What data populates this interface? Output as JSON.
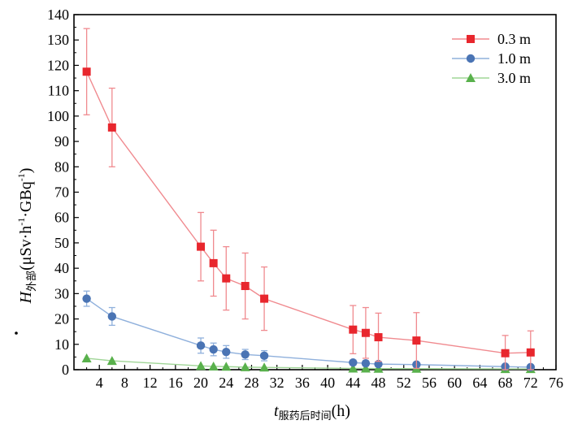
{
  "chart_data": {
    "type": "line",
    "title": "",
    "xlabel_main": "t",
    "xlabel_sub": "服药后时间",
    "xlabel_unit": "(h)",
    "ylabel_main": "H",
    "ylabel_sub": "外部",
    "ylabel_unit": "(μSv·h",
    "ylabel_exp1": "-1",
    "ylabel_mid": "·GBq",
    "ylabel_exp2": "-1",
    "ylabel_end": ")",
    "xlim": [
      0,
      76
    ],
    "ylim": [
      0,
      140
    ],
    "xticks": [
      4,
      8,
      12,
      16,
      20,
      24,
      28,
      32,
      36,
      40,
      44,
      48,
      52,
      56,
      60,
      64,
      68,
      72,
      76
    ],
    "yticks": [
      0,
      10,
      20,
      30,
      40,
      50,
      60,
      70,
      80,
      90,
      100,
      110,
      120,
      130,
      140
    ],
    "grid": false,
    "legend_position": "top-right",
    "series": [
      {
        "name": "0.3 m",
        "color": "#e8262d",
        "line_color": "#f08a8f",
        "marker": "square",
        "x": [
          2,
          6,
          20,
          22,
          24,
          27,
          30,
          44,
          46,
          48,
          54,
          68,
          72
        ],
        "y": [
          117.5,
          95.5,
          48.5,
          42,
          36,
          33,
          28,
          15.8,
          14.5,
          12.8,
          11.5,
          6.5,
          6.8
        ],
        "err": [
          17,
          15.5,
          13.5,
          13,
          12.5,
          13,
          12.5,
          9.5,
          10,
          9.5,
          11,
          7,
          8.5
        ]
      },
      {
        "name": "1.0 m",
        "color": "#4a74b4",
        "line_color": "#8fb0dc",
        "marker": "circle",
        "x": [
          2,
          6,
          20,
          22,
          24,
          27,
          30,
          44,
          46,
          48,
          54,
          68,
          72
        ],
        "y": [
          28,
          21,
          9.5,
          8,
          7,
          6,
          5.5,
          2.8,
          2.5,
          2.2,
          2.0,
          1.2,
          1.0
        ],
        "err": [
          3,
          3.5,
          3,
          2.5,
          2.5,
          2,
          2,
          1,
          1,
          1,
          1,
          0.8,
          0.8
        ]
      },
      {
        "name": "3.0 m",
        "color": "#59b14c",
        "line_color": "#9fd596",
        "marker": "triangle",
        "x": [
          2,
          6,
          20,
          22,
          24,
          27,
          30,
          44,
          46,
          48,
          54,
          68,
          72
        ],
        "y": [
          4.5,
          3.5,
          1.5,
          1.3,
          1.2,
          1.0,
          0.9,
          0.5,
          0.5,
          0.4,
          0.4,
          0.3,
          0.3
        ],
        "err": [
          0,
          0,
          0,
          0,
          0,
          0,
          0,
          0,
          0,
          0,
          0,
          0,
          0
        ]
      }
    ]
  }
}
